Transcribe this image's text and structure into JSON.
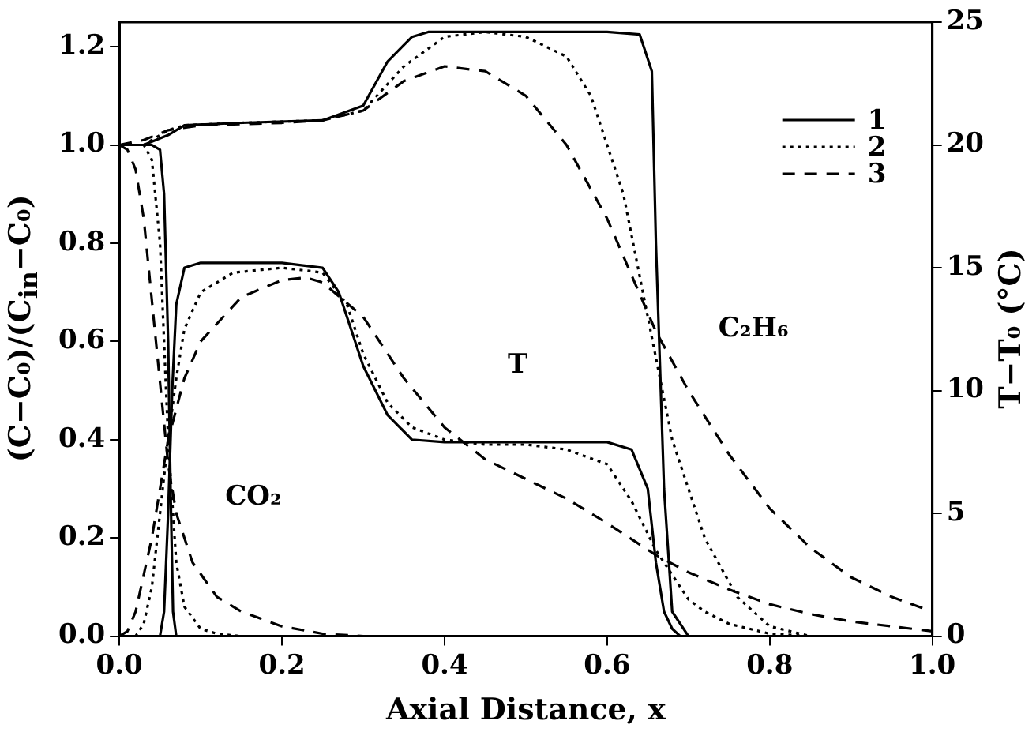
{
  "chart_data": {
    "type": "line",
    "xlabel": "Axial Distance, x",
    "ylabel": "(C−C₀)/(C$_{in}$−C₀)",
    "y2label": "T−T₀  (°C)",
    "xlim": [
      0,
      1
    ],
    "ylim": [
      0,
      1.25
    ],
    "y2lim": [
      0,
      25
    ],
    "xticks": [
      {
        "value": 0,
        "label": "0.0"
      },
      {
        "value": 0.2,
        "label": "0.2"
      },
      {
        "value": 0.4,
        "label": "0.4"
      },
      {
        "value": 0.6,
        "label": "0.6"
      },
      {
        "value": 0.8,
        "label": "0.8"
      },
      {
        "value": 1,
        "label": "1.0"
      }
    ],
    "yticks": [
      {
        "value": 0,
        "label": "0.0"
      },
      {
        "value": 0.2,
        "label": "0.2"
      },
      {
        "value": 0.4,
        "label": "0.4"
      },
      {
        "value": 0.6,
        "label": "0.6"
      },
      {
        "value": 0.8,
        "label": "0.8"
      },
      {
        "value": 1,
        "label": "1.0"
      },
      {
        "value": 1.2,
        "label": "1.2"
      }
    ],
    "y2ticks": [
      0,
      5,
      10,
      15,
      20,
      25
    ],
    "grid": false,
    "legend": "top right",
    "marker": "none",
    "annotations": [
      "CO₂",
      "T",
      "C₂H₆"
    ],
    "series": [
      {
        "name": "1",
        "color": "#000000",
        "line_style": "solid",
        "x": [
          0,
          0.03,
          0.06,
          0.08,
          0.15,
          0.25,
          0.3,
          0.33,
          0.36,
          0.38,
          0.45,
          0.6,
          0.64,
          0.655,
          0.66,
          0.67,
          0.68,
          0.7
        ],
        "values": [
          1,
          1,
          1.02,
          1.04,
          1.045,
          1.05,
          1.08,
          1.17,
          1.22,
          1.23,
          1.23,
          1.23,
          1.225,
          1.15,
          0.8,
          0.3,
          0.05,
          0
        ]
      },
      {
        "name": "2",
        "color": "#000000",
        "line_style": "dotted",
        "x": [
          0,
          0.03,
          0.06,
          0.08,
          0.15,
          0.25,
          0.3,
          0.35,
          0.4,
          0.45,
          0.5,
          0.55,
          0.58,
          0.62,
          0.65,
          0.68,
          0.72,
          0.76,
          0.8,
          0.85
        ],
        "values": [
          1,
          1,
          1.03,
          1.04,
          1.045,
          1.05,
          1.07,
          1.16,
          1.22,
          1.23,
          1.22,
          1.18,
          1.1,
          0.9,
          0.65,
          0.4,
          0.2,
          0.08,
          0.02,
          0
        ]
      },
      {
        "name": "3",
        "color": "#000000",
        "line_style": "dashed",
        "x": [
          0,
          0.03,
          0.06,
          0.1,
          0.2,
          0.25,
          0.3,
          0.35,
          0.4,
          0.45,
          0.5,
          0.55,
          0.6,
          0.66,
          0.7,
          0.75,
          0.8,
          0.85,
          0.9,
          0.95,
          1
        ],
        "values": [
          1,
          1.01,
          1.03,
          1.04,
          1.045,
          1.05,
          1.07,
          1.13,
          1.16,
          1.15,
          1.1,
          1,
          0.85,
          0.62,
          0.5,
          0.37,
          0.26,
          0.18,
          0.12,
          0.08,
          0.05
        ]
      },
      {
        "color": "#000000",
        "line_style": "solid",
        "x": [
          0,
          0.04,
          0.05,
          0.055,
          0.06,
          0.063,
          0.066,
          0.07,
          0.1
        ],
        "values": [
          1,
          1,
          0.99,
          0.9,
          0.6,
          0.3,
          0.05,
          0,
          0
        ]
      },
      {
        "color": "#000000",
        "line_style": "dotted",
        "x": [
          0,
          0.03,
          0.04,
          0.05,
          0.06,
          0.07,
          0.08,
          0.1,
          0.12,
          0.15
        ],
        "values": [
          1,
          1,
          0.97,
          0.8,
          0.4,
          0.15,
          0.06,
          0.015,
          0.005,
          0
        ]
      },
      {
        "color": "#000000",
        "line_style": "dashed",
        "x": [
          0,
          0.01,
          0.02,
          0.03,
          0.045,
          0.06,
          0.07,
          0.09,
          0.12,
          0.15,
          0.2,
          0.25,
          0.3
        ],
        "values": [
          1,
          0.99,
          0.95,
          0.85,
          0.6,
          0.35,
          0.25,
          0.15,
          0.08,
          0.05,
          0.02,
          0.005,
          0
        ]
      },
      {
        "color": "#000000",
        "line_style": "solid",
        "axis": "y2",
        "x": [
          0,
          0.05,
          0.055,
          0.06,
          0.065,
          0.07,
          0.08,
          0.1,
          0.2,
          0.25,
          0.27,
          0.3,
          0.33,
          0.36,
          0.4,
          0.6,
          0.63,
          0.65,
          0.66,
          0.67,
          0.68,
          0.69,
          0.7
        ],
        "values": [
          0,
          0,
          1,
          5,
          10,
          13.5,
          15,
          15.2,
          15.2,
          15,
          14,
          11,
          9,
          8,
          7.9,
          7.9,
          7.6,
          6,
          3,
          1,
          0.3,
          0,
          0
        ]
      },
      {
        "color": "#000000",
        "line_style": "dotted",
        "axis": "y2",
        "x": [
          0,
          0.02,
          0.03,
          0.04,
          0.05,
          0.06,
          0.07,
          0.08,
          0.1,
          0.14,
          0.2,
          0.25,
          0.28,
          0.3,
          0.33,
          0.36,
          0.4,
          0.45,
          0.5,
          0.55,
          0.6,
          0.63,
          0.66,
          0.68,
          0.7,
          0.72,
          0.75,
          0.8,
          0.85
        ],
        "values": [
          0,
          0,
          0.5,
          2,
          5,
          8,
          10.5,
          12.5,
          14,
          14.8,
          15,
          14.8,
          13.5,
          11.5,
          9.5,
          8.5,
          8,
          7.8,
          7.8,
          7.6,
          7,
          5.5,
          3.5,
          2.5,
          1.5,
          1,
          0.5,
          0.1,
          0
        ]
      },
      {
        "color": "#000000",
        "line_style": "dashed",
        "axis": "y2",
        "x": [
          0,
          0.01,
          0.02,
          0.04,
          0.06,
          0.08,
          0.1,
          0.15,
          0.2,
          0.23,
          0.25,
          0.3,
          0.35,
          0.4,
          0.45,
          0.5,
          0.55,
          0.6,
          0.66,
          0.7,
          0.75,
          0.8,
          0.85,
          0.9,
          0.95,
          1
        ],
        "values": [
          0,
          0.2,
          1,
          4,
          8,
          10.5,
          12,
          13.8,
          14.5,
          14.6,
          14.4,
          13,
          10.5,
          8.5,
          7.2,
          6.4,
          5.6,
          4.6,
          3.3,
          2.6,
          1.9,
          1.3,
          0.9,
          0.6,
          0.4,
          0.2
        ]
      }
    ]
  }
}
